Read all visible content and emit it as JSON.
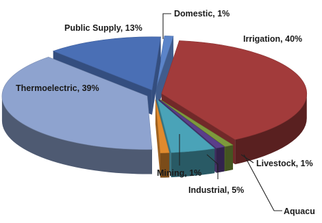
{
  "chart_data": {
    "type": "pie",
    "style": "3d-exploded",
    "title": "",
    "slices": [
      {
        "label": "Irrigation, 40%",
        "category": "Irrigation",
        "value": 40,
        "color": "#a23b3b"
      },
      {
        "label": "Livestock, 1%",
        "category": "Livestock",
        "value": 1,
        "color": "#7d9a3c"
      },
      {
        "label": "Aquacu",
        "category": "Aquaculture",
        "value": 1,
        "color": "#5a3e8a"
      },
      {
        "label": "Industrial, 5%",
        "category": "Industrial",
        "value": 5,
        "color": "#4aa3b8"
      },
      {
        "label": "Mining, 1%",
        "category": "Mining",
        "value": 1,
        "color": "#e08a2e"
      },
      {
        "label": "Thermoelectric, 39%",
        "category": "Thermoelectric",
        "value": 39,
        "color": "#8ea3cf"
      },
      {
        "label": "Public Supply, 13%",
        "category": "Public Supply",
        "value": 13,
        "color": "#4a6fb5"
      },
      {
        "label": "Domestic, 1%",
        "category": "Domestic",
        "value": 1,
        "color": "#5b84c9"
      }
    ],
    "legend": "none"
  }
}
